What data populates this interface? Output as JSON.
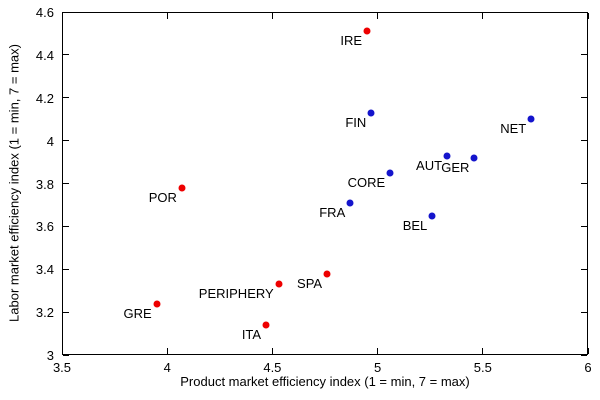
{
  "chart_data": {
    "type": "scatter",
    "title": "",
    "xlabel": "Product market efficiency index (1 = min, 7 = max)",
    "ylabel": "Labor market efficiency index (1 = min, 7 = max)",
    "xlim": [
      3.5,
      6
    ],
    "ylim": [
      3,
      4.6
    ],
    "xticks": [
      "3.5",
      "4",
      "4.5",
      "5",
      "5.5",
      "6"
    ],
    "yticks": [
      "3",
      "3.2",
      "3.4",
      "3.6",
      "3.8",
      "4",
      "4.2",
      "4.4",
      "4.6"
    ],
    "grid": false,
    "legend_position": "none",
    "colors": {
      "red": "#ee0000",
      "blue": "#1414cc"
    },
    "series": [
      {
        "name": "periphery",
        "color": "red",
        "points": [
          {
            "label": "IRE",
            "x": 4.95,
            "y": 4.51
          },
          {
            "label": "POR",
            "x": 4.07,
            "y": 3.78
          },
          {
            "label": "SPA",
            "x": 4.76,
            "y": 3.38
          },
          {
            "label": "PERIPHERY",
            "x": 4.53,
            "y": 3.33
          },
          {
            "label": "GRE",
            "x": 3.95,
            "y": 3.24
          },
          {
            "label": "ITA",
            "x": 4.47,
            "y": 3.14
          }
        ]
      },
      {
        "name": "core",
        "color": "blue",
        "points": [
          {
            "label": "FIN",
            "x": 4.97,
            "y": 4.13
          },
          {
            "label": "NET",
            "x": 5.73,
            "y": 4.1
          },
          {
            "label": "AUT",
            "x": 5.33,
            "y": 3.93
          },
          {
            "label": "GER",
            "x": 5.46,
            "y": 3.92
          },
          {
            "label": "CORE",
            "x": 5.06,
            "y": 3.85
          },
          {
            "label": "FRA",
            "x": 4.87,
            "y": 3.71
          },
          {
            "label": "BEL",
            "x": 5.26,
            "y": 3.65
          }
        ]
      }
    ]
  }
}
